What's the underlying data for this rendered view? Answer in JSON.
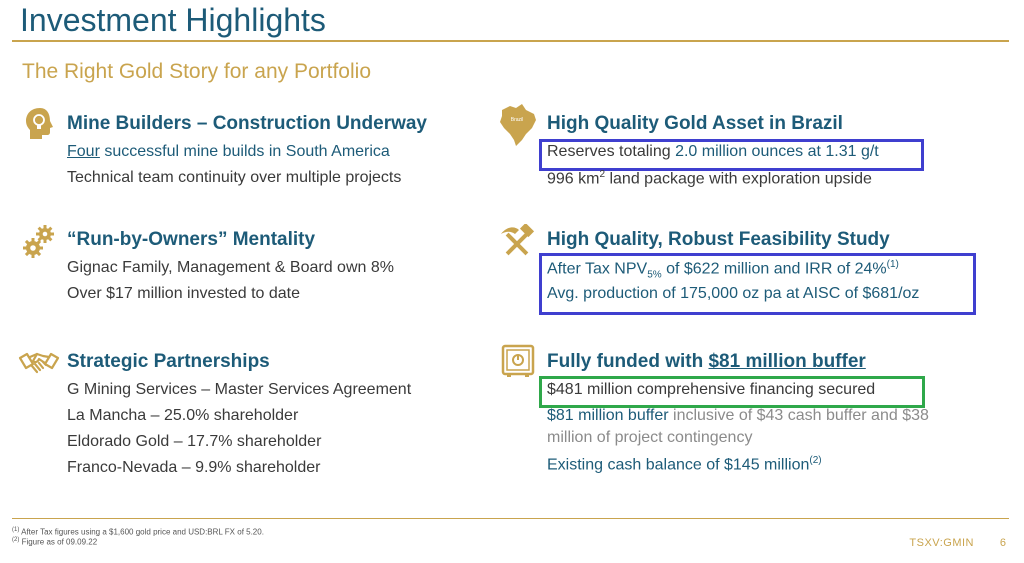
{
  "title": "Investment Highlights",
  "subtitle": "The Right Gold Story for any Portfolio",
  "colors": {
    "navy": "#1d5b78",
    "gold": "#c9a44e",
    "box_blue": "#3f3fcf",
    "box_green": "#2fa84a"
  },
  "left": {
    "mine_builders": {
      "icon": "lightbulb-head-icon",
      "heading": "Mine Builders – Construction Underway",
      "line1_link": "Four",
      "line1_rest": " successful mine builds in South America",
      "line2": "Technical team continuity over multiple projects"
    },
    "run_by_owners": {
      "icon": "gears-icon",
      "heading": "“Run-by-Owners” Mentality",
      "line1": "Gignac Family, Management & Board own 8%",
      "line2": "Over $17 million invested to date"
    },
    "partnerships": {
      "icon": "handshake-icon",
      "heading": "Strategic Partnerships",
      "lines": [
        "G Mining Services – Master Services Agreement",
        "La Mancha – 25.0% shareholder",
        "Eldorado Gold – 17.7% shareholder",
        "Franco-Nevada – 9.9% shareholder"
      ]
    }
  },
  "right": {
    "brazil": {
      "icon": "brazil-map-icon",
      "icon_label": "Brazil",
      "heading": "High Quality Gold Asset in Brazil",
      "line1_a": "Reserves totaling ",
      "line1_b": "2.0 million ounces at 1.31 g/t",
      "line2_a": "996 km",
      "line2_sup": "2",
      "line2_b": " land package with exploration upside"
    },
    "feasibility": {
      "icon": "hammer-pick-icon",
      "heading": "High Quality, Robust Feasibility Study",
      "line1_a": "After Tax NPV",
      "line1_sub": "5%",
      "line1_b": " of $622 million and IRR of 24%",
      "line1_sup": "(1)",
      "line2": "Avg. production of 175,000 oz pa at AISC of $681/oz"
    },
    "funded": {
      "icon": "safe-icon",
      "heading_a": "Fully funded with ",
      "heading_b": "$81 million buffer",
      "line1": "$481 million comprehensive financing secured",
      "line2_a": "$81 million buffer",
      "line2_b": " inclusive of $43 cash buffer and $38",
      "line3": "million of project contingency",
      "line4": "Existing cash balance of $145 million",
      "line4_sup": "(2)"
    }
  },
  "footnotes": {
    "fn1_mark": "(1)",
    "fn1": " After Tax figures using a $1,600 gold price and USD:BRL FX of 5.20.",
    "fn2_mark": "(2)",
    "fn2": " Figure as of 09.09.22"
  },
  "ticker": "TSXV:GMIN",
  "page_number": "6"
}
